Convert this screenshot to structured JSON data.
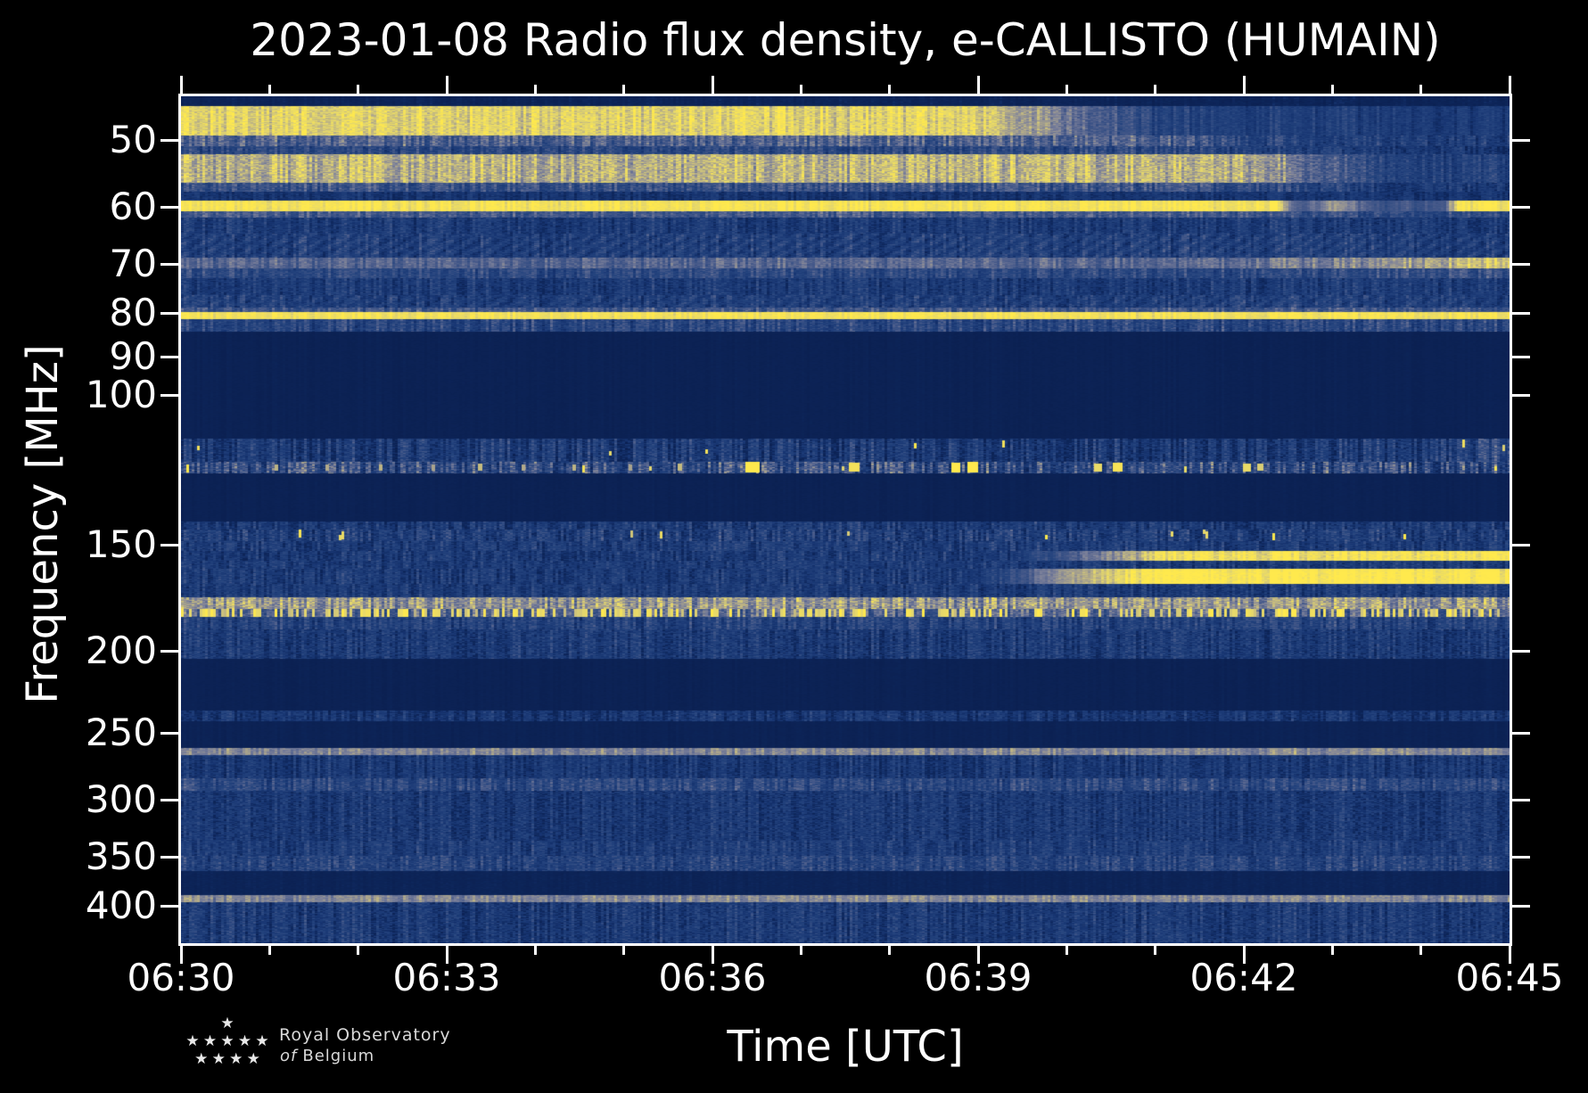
{
  "title": "2023-01-08 Radio flux density, e-CALLISTO (HUMAIN)",
  "axes": {
    "xlabel": "Time [UTC]",
    "ylabel": "Frequency [MHz]"
  },
  "footer": {
    "org_line1": "Royal Observatory",
    "org_line2_italic": "of",
    "org_line2": "Belgium",
    "star_rows": [
      1,
      5,
      4
    ]
  },
  "colors": {
    "background": "#000000",
    "axis": "#ffffff",
    "text": "#ffffff",
    "footer_text": "#d9d9d9",
    "spectrogram_bright": "#ffe94d",
    "spectrogram_dark": "#0a1e4e"
  },
  "chart_data": {
    "type": "heatmap",
    "title": "2023-01-08 Radio flux density, e-CALLISTO (HUMAIN)",
    "xlabel": "Time [UTC]",
    "ylabel": "Frequency [MHz]",
    "x_start": "06:30",
    "x_end": "06:45",
    "duration_minutes": 15,
    "x_major_ticks": [
      "06:30",
      "06:33",
      "06:36",
      "06:39",
      "06:42",
      "06:45"
    ],
    "x_minor_interval_minutes": 1,
    "y_scale": "log",
    "y_axis_inverted": true,
    "y_range_mhz": [
      44.4,
      443
    ],
    "y_ticks_mhz": [
      50,
      60,
      70,
      80,
      90,
      100,
      150,
      200,
      250,
      300,
      350,
      400
    ],
    "legend": "none",
    "grid": false,
    "observed_features": [
      "Broad bright emission band 45-50 MHz, fading after ~06:41",
      "Pale emission band 52-56 MHz fading after ~06:42",
      "Continuous narrow RFI carrier at 60 MHz with dropouts after ~06:42:30",
      "Khaki RFI line at ~70 MHz brightening toward 06:45",
      "Continuous bright RFI line at ~80.5 MHz",
      "Quiet dark band 84-112 MHz",
      "Intermittent RFI near 120 MHz with bright bursts at ~06:36.5, 06:37.6, 06:38.8, 06:40.4, 06:42.0",
      "Dashed RFI bursts near 148-150 MHz across whole interval",
      "Two RFI lines at ~155 and ~163 MHz appearing after ~06:39 and brightening toward 06:45",
      "Khaki band ~175 MHz and dense dashed line ~180 MHz",
      "Broadband weak noise bands up to 443 MHz, quiet bands near 220-260 and 365-390 MHz"
    ],
    "colormap": [
      [
        0.0,
        "#0a1e4e"
      ],
      [
        0.12,
        "#0d2559"
      ],
      [
        0.25,
        "#173572"
      ],
      [
        0.4,
        "#26457f"
      ],
      [
        0.55,
        "#4a5c8b"
      ],
      [
        0.68,
        "#7b809a"
      ],
      [
        0.8,
        "#b3ab8a"
      ],
      [
        0.9,
        "#e3d66e"
      ],
      [
        1.0,
        "#ffe94d"
      ]
    ],
    "bands": [
      {
        "f": [
          44.4,
          45.6
        ],
        "m": 0.1,
        "cn": 0.03,
        "pn": 0.04
      },
      {
        "f": [
          45.6,
          49.4
        ],
        "m": 0.9,
        "cn": 0.07,
        "pn": 0.07,
        "prof": [
          [
            0,
            1
          ],
          [
            0.6,
            1
          ],
          [
            0.74,
            0.4
          ],
          [
            1,
            0.32
          ]
        ]
      },
      {
        "f": [
          49.4,
          50.9
        ],
        "m": 0.55,
        "cn": 0.12,
        "pn": 0.1,
        "prof": [
          [
            0,
            1
          ],
          [
            0.72,
            1
          ],
          [
            0.84,
            0.62
          ],
          [
            1,
            0.58
          ]
        ]
      },
      {
        "f": [
          50.9,
          52.0
        ],
        "m": 0.4,
        "cn": 0.1,
        "pn": 0.1,
        "prof": [
          [
            0,
            1
          ],
          [
            0.75,
            1
          ],
          [
            0.87,
            0.72
          ],
          [
            1,
            0.66
          ]
        ]
      },
      {
        "f": [
          52.0,
          56.1
        ],
        "m": 0.82,
        "cn": 0.08,
        "pn": 0.09,
        "prof": [
          [
            0,
            1
          ],
          [
            0.8,
            1
          ],
          [
            0.9,
            0.48
          ],
          [
            1,
            0.42
          ]
        ]
      },
      {
        "f": [
          56.1,
          57.5
        ],
        "m": 0.48,
        "cn": 0.12,
        "pn": 0.1,
        "prof": [
          [
            0,
            1
          ],
          [
            0.8,
            1
          ],
          [
            0.9,
            0.62
          ],
          [
            1,
            0.56
          ]
        ]
      },
      {
        "f": [
          57.5,
          58.9
        ],
        "m": 0.24,
        "cn": 0.08,
        "pn": 0.08
      },
      {
        "f": [
          58.9,
          60.7
        ],
        "m": 0.97,
        "cn": 0.04,
        "pn": 0.03,
        "prof": [
          [
            0,
            1
          ],
          [
            0.825,
            1
          ],
          [
            0.838,
            0.55
          ],
          [
            0.87,
            0.78
          ],
          [
            0.9,
            0.5
          ],
          [
            0.95,
            0.56
          ],
          [
            0.962,
            1
          ],
          [
            1,
            1
          ]
        ]
      },
      {
        "f": [
          60.7,
          61.7
        ],
        "m": 0.52,
        "cn": 0.1,
        "pn": 0.08,
        "prof": [
          [
            0,
            1
          ],
          [
            0.83,
            1
          ],
          [
            0.9,
            0.8
          ],
          [
            1,
            0.85
          ]
        ]
      },
      {
        "f": [
          61.7,
          64.4
        ],
        "m": 0.3,
        "cn": 0.1,
        "pn": 0.1
      },
      {
        "f": [
          64.4,
          68.8
        ],
        "m": 0.34,
        "cn": 0.1,
        "pn": 0.1,
        "wave": 0.06
      },
      {
        "f": [
          68.8,
          70.9
        ],
        "m": 0.58,
        "cn": 0.08,
        "pn": 0.06,
        "prof": [
          [
            0,
            1
          ],
          [
            0.74,
            1
          ],
          [
            0.9,
            1.2
          ],
          [
            1,
            1.55
          ]
        ]
      },
      {
        "f": [
          70.9,
          72.8
        ],
        "m": 0.42,
        "cn": 0.1,
        "pn": 0.08,
        "prof": [
          [
            0,
            1
          ],
          [
            0.85,
            1
          ],
          [
            1,
            1.15
          ]
        ]
      },
      {
        "f": [
          72.8,
          76.1
        ],
        "m": 0.3,
        "cn": 0.1,
        "pn": 0.1
      },
      {
        "f": [
          76.1,
          78.8
        ],
        "m": 0.34,
        "cn": 0.1,
        "pn": 0.1,
        "wave": 0.05
      },
      {
        "f": [
          78.8,
          79.7
        ],
        "m": 0.5,
        "cn": 0.1,
        "pn": 0.08
      },
      {
        "f": [
          79.7,
          81.4
        ],
        "m": 0.96,
        "cn": 0.03,
        "pn": 0.03
      },
      {
        "f": [
          81.4,
          84.2
        ],
        "m": 0.4,
        "cn": 0.12,
        "pn": 0.1
      },
      {
        "f": [
          84.2,
          112.5
        ],
        "m": 0.07,
        "cn": 0.015,
        "pn": 0.02
      },
      {
        "f": [
          112.5,
          119.9
        ],
        "m": 0.3,
        "cn": 0.16,
        "pn": 0.12,
        "spike": 0.012,
        "prof": [
          [
            0,
            1
          ],
          [
            0.93,
            1
          ],
          [
            1,
            1.35
          ]
        ]
      },
      {
        "f": [
          119.9,
          123.6
        ],
        "m": 0.44,
        "cn": 0.22,
        "pn": 0.15,
        "spike": 0.02
      },
      {
        "f": [
          123.6,
          141.0
        ],
        "m": 0.07,
        "cn": 0.015,
        "pn": 0.02
      },
      {
        "f": [
          141.0,
          144.0
        ],
        "m": 0.3,
        "cn": 0.14,
        "pn": 0.1
      },
      {
        "f": [
          144.0,
          148.8
        ],
        "m": 0.33,
        "cn": 0.14,
        "pn": 0.12,
        "spike": 0.022
      },
      {
        "f": [
          148.8,
          152.8
        ],
        "m": 0.31,
        "cn": 0.12,
        "pn": 0.1
      },
      {
        "f": [
          152.8,
          156.7
        ],
        "m": 0.98,
        "cn": 0.06,
        "pn": 0.05,
        "floor": 0.3,
        "prof": [
          [
            0,
            0
          ],
          [
            0.56,
            0
          ],
          [
            0.62,
            0.2
          ],
          [
            0.68,
            0.62
          ],
          [
            0.74,
            0.96
          ],
          [
            1,
            1
          ]
        ]
      },
      {
        "f": [
          156.7,
          160.4
        ],
        "m": 0.3,
        "cn": 0.1,
        "pn": 0.1
      },
      {
        "f": [
          160.4,
          166.9
        ],
        "m": 0.99,
        "cn": 0.05,
        "pn": 0.04,
        "floor": 0.3,
        "prof": [
          [
            0,
            0
          ],
          [
            0.52,
            0
          ],
          [
            0.6,
            0.25
          ],
          [
            0.66,
            0.72
          ],
          [
            0.73,
            1
          ],
          [
            1,
            1
          ]
        ]
      },
      {
        "f": [
          166.9,
          173.0
        ],
        "m": 0.3,
        "cn": 0.1,
        "pn": 0.1,
        "prof": [
          [
            0,
            1
          ],
          [
            0.8,
            1
          ],
          [
            1,
            1.12
          ]
        ]
      },
      {
        "f": [
          173.0,
          178.5
        ],
        "m": 0.74,
        "cn": 0.12,
        "pn": 0.1
      },
      {
        "f": [
          178.5,
          182.4
        ],
        "m": 0.55,
        "cn": 0.15,
        "pn": 0.1,
        "spike": 0.45,
        "spikeFull": true
      },
      {
        "f": [
          182.4,
          189.0
        ],
        "m": 0.36,
        "cn": 0.12,
        "pn": 0.1
      },
      {
        "f": [
          189.0,
          204.6
        ],
        "m": 0.3,
        "cn": 0.1,
        "pn": 0.12
      },
      {
        "f": [
          204.6,
          235.6
        ],
        "m": 0.07,
        "cn": 0.015,
        "pn": 0.02
      },
      {
        "f": [
          235.6,
          242.3
        ],
        "m": 0.26,
        "cn": 0.12,
        "pn": 0.1
      },
      {
        "f": [
          242.3,
          260.8
        ],
        "m": 0.08,
        "cn": 0.02,
        "pn": 0.02
      },
      {
        "f": [
          260.8,
          265.7
        ],
        "m": 0.7,
        "cn": 0.06,
        "pn": 0.05
      },
      {
        "f": [
          265.7,
          283.1
        ],
        "m": 0.28,
        "cn": 0.1,
        "pn": 0.1
      },
      {
        "f": [
          283.1,
          292.7
        ],
        "m": 0.42,
        "cn": 0.12,
        "pn": 0.1
      },
      {
        "f": [
          292.7,
          335.2
        ],
        "m": 0.28,
        "cn": 0.08,
        "pn": 0.12
      },
      {
        "f": [
          335.2,
          349.8
        ],
        "m": 0.32,
        "cn": 0.1,
        "pn": 0.1
      },
      {
        "f": [
          349.8,
          364.2
        ],
        "m": 0.38,
        "cn": 0.1,
        "pn": 0.12
      },
      {
        "f": [
          364.2,
          388.8
        ],
        "m": 0.1,
        "cn": 0.02,
        "pn": 0.03
      },
      {
        "f": [
          388.8,
          395.9
        ],
        "m": 0.7,
        "cn": 0.06,
        "pn": 0.05
      },
      {
        "f": [
          395.9,
          443.0
        ],
        "m": 0.3,
        "cn": 0.1,
        "pn": 0.12
      }
    ],
    "blobs": [
      {
        "t": 0.43,
        "f": 121.6,
        "w": 16,
        "h": 12,
        "v": 1.0
      },
      {
        "t": 0.507,
        "f": 121.6,
        "w": 12,
        "h": 10,
        "v": 0.96
      },
      {
        "t": 0.583,
        "f": 121.6,
        "w": 10,
        "h": 11,
        "v": 1.0
      },
      {
        "t": 0.596,
        "f": 121.6,
        "w": 12,
        "h": 12,
        "v": 1.0
      },
      {
        "t": 0.69,
        "f": 121.6,
        "w": 9,
        "h": 9,
        "v": 0.92
      },
      {
        "t": 0.705,
        "f": 121.6,
        "w": 11,
        "h": 10,
        "v": 0.97
      },
      {
        "t": 0.802,
        "f": 121.6,
        "w": 9,
        "h": 9,
        "v": 0.92
      },
      {
        "t": 0.812,
        "f": 121.6,
        "w": 7,
        "h": 8,
        "v": 0.88
      },
      {
        "t": 0.072,
        "f": 121.6,
        "w": 4,
        "h": 7,
        "v": 0.82
      },
      {
        "t": 0.11,
        "f": 121.6,
        "w": 4,
        "h": 7,
        "v": 0.8
      },
      {
        "t": 0.15,
        "f": 121.6,
        "w": 4,
        "h": 7,
        "v": 0.82
      },
      {
        "t": 0.19,
        "f": 121.6,
        "w": 4,
        "h": 7,
        "v": 0.78
      },
      {
        "t": 0.225,
        "f": 121.6,
        "w": 5,
        "h": 8,
        "v": 0.84
      },
      {
        "t": 0.258,
        "f": 121.6,
        "w": 4,
        "h": 7,
        "v": 0.8
      },
      {
        "t": 0.296,
        "f": 121.6,
        "w": 4,
        "h": 7,
        "v": 0.82
      },
      {
        "t": 0.338,
        "f": 121.6,
        "w": 4,
        "h": 7,
        "v": 0.78
      },
      {
        "t": 0.375,
        "f": 121.6,
        "w": 5,
        "h": 8,
        "v": 0.84
      }
    ]
  }
}
